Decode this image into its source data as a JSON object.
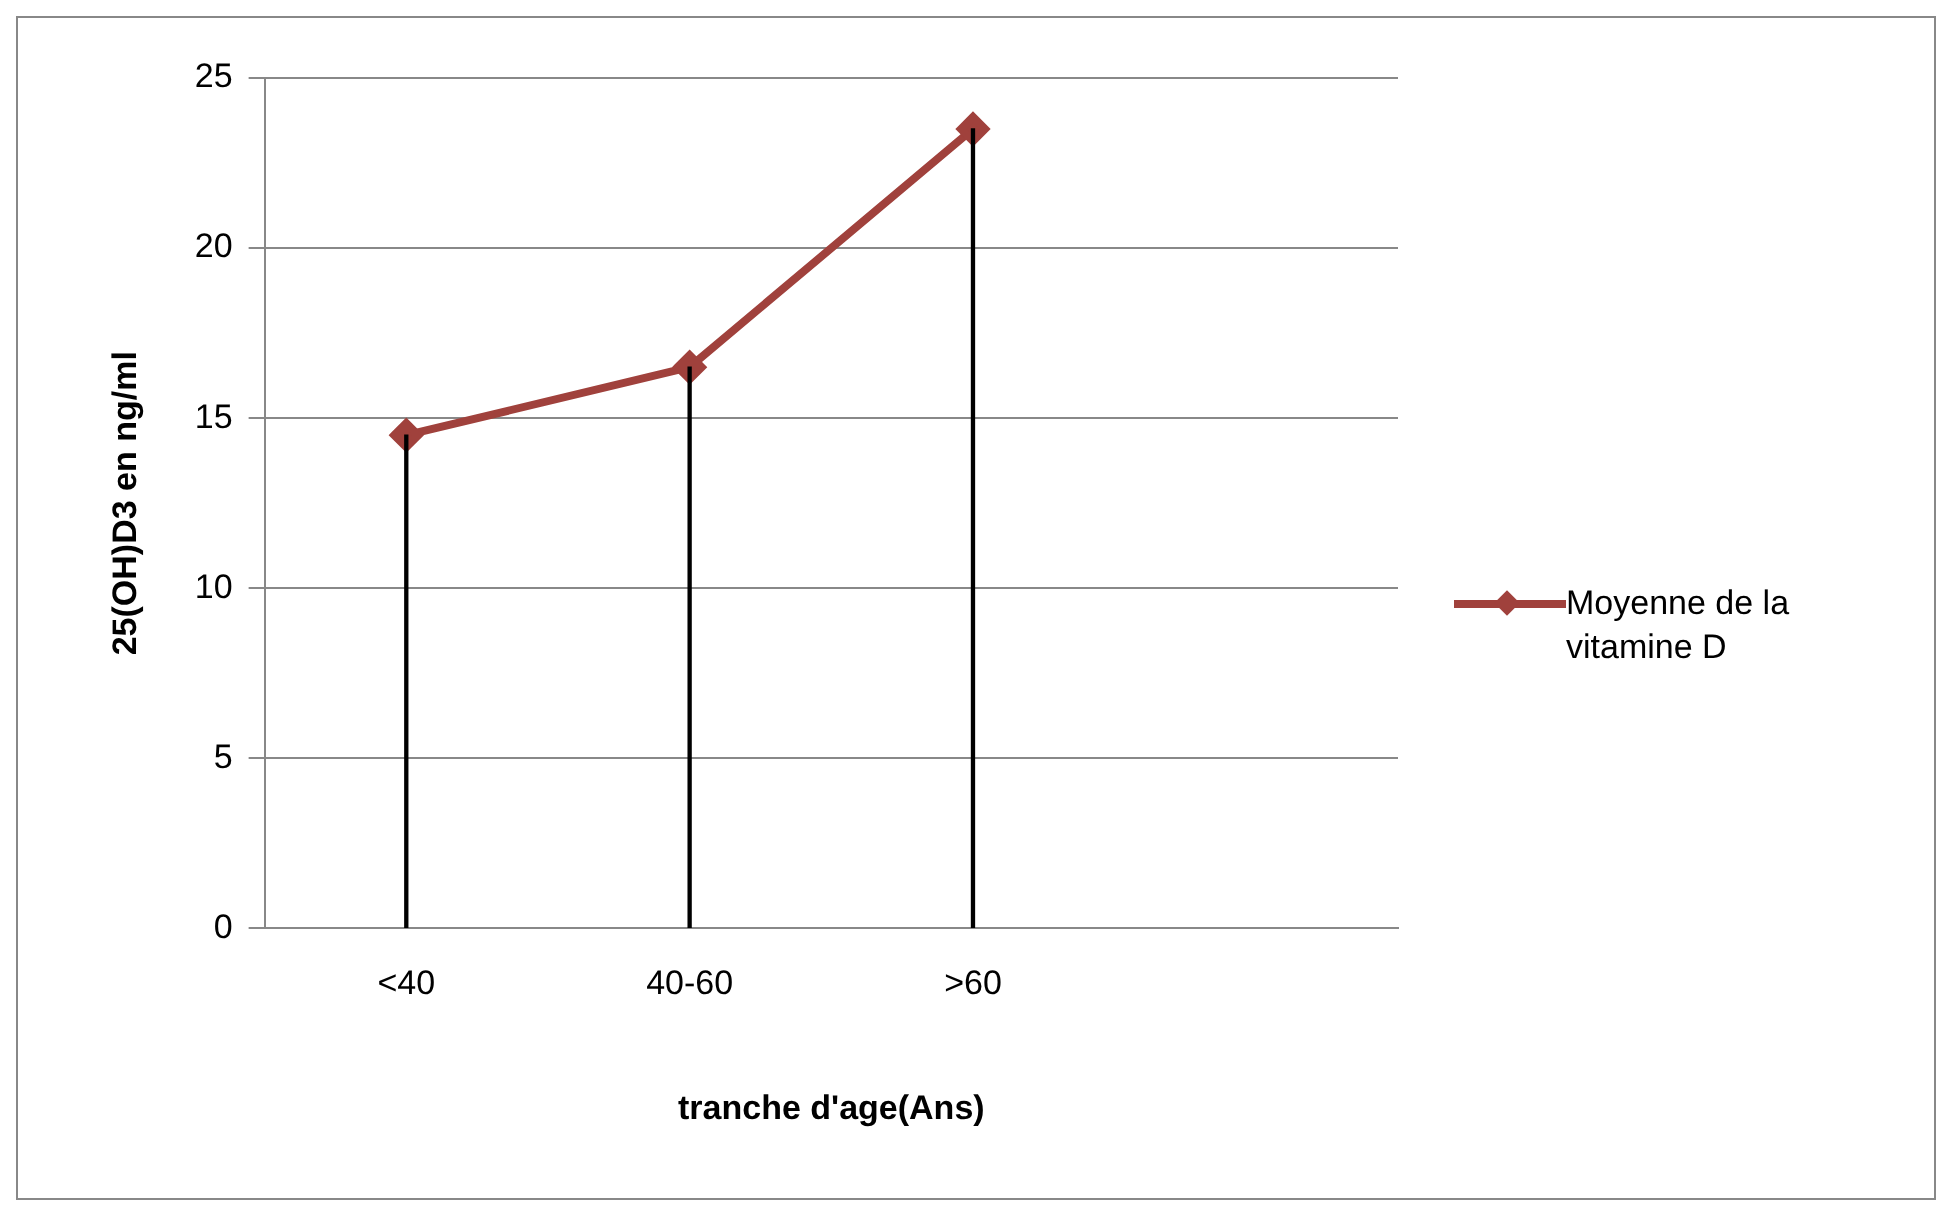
{
  "chart_data": {
    "type": "line",
    "xlabel": "tranche d'age(Ans)",
    "ylabel": "25(OH)D3 en ng/ml",
    "categories": [
      "<40",
      "40-60",
      ">60",
      null
    ],
    "series": [
      {
        "name": "Moyenne de la vitamine D",
        "color": "#a0413c",
        "values": [
          14.5,
          16.5,
          23.5,
          null
        ]
      },
      {
        "type": "bar",
        "color": "#000000",
        "values": [
          14.5,
          16.5,
          23.5,
          null
        ]
      }
    ],
    "ylim": [
      0,
      25
    ],
    "yticks": [
      0,
      5,
      10,
      15,
      20,
      25
    ],
    "grid": "y",
    "legend": "right",
    "marker": "diamond",
    "line_style": "solid"
  }
}
